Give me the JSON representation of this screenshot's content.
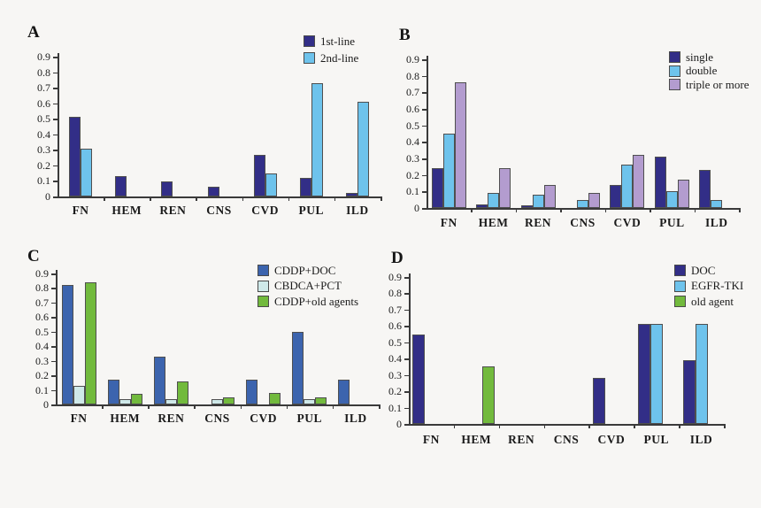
{
  "figure": {
    "background_color": "#f7f6f4",
    "text_color": "#1b1b1b",
    "axis_color": "#3a3a3a",
    "bar_border_color": "#4f4f4f",
    "categories": [
      "FN",
      "HEM",
      "REN",
      "CNS",
      "CVD",
      "PUL",
      "ILD"
    ],
    "y_tick_labels": [
      "0.9",
      "0.8",
      "0.7",
      "0.6",
      "0.5",
      "0.4",
      "0.3",
      "0.2",
      "0.1",
      "0"
    ]
  },
  "chart_data": [
    {
      "id": "A",
      "panel_label": "A",
      "type": "bar",
      "categories": [
        "FN",
        "HEM",
        "REN",
        "CNS",
        "CVD",
        "PUL",
        "ILD"
      ],
      "ylim": [
        0,
        0.9
      ],
      "y_ticks": [
        0.9,
        0.8,
        0.7,
        0.6,
        0.5,
        0.4,
        0.3,
        0.2,
        0.1,
        0
      ],
      "legend_position": "top-right",
      "series": [
        {
          "name": "1st-line",
          "color": "#322e87",
          "values": [
            0.51,
            0.13,
            0.095,
            0.06,
            0.27,
            0.12,
            0.02
          ]
        },
        {
          "name": "2nd-line",
          "color": "#6ec3ec",
          "values": [
            0.31,
            0,
            0,
            0,
            0.15,
            0.73,
            0.61
          ]
        }
      ]
    },
    {
      "id": "B",
      "panel_label": "B",
      "type": "bar",
      "categories": [
        "FN",
        "HEM",
        "REN",
        "CNS",
        "CVD",
        "PUL",
        "ILD"
      ],
      "ylim": [
        0,
        0.9
      ],
      "y_ticks": [
        0.9,
        0.8,
        0.7,
        0.6,
        0.5,
        0.4,
        0.3,
        0.2,
        0.1,
        0
      ],
      "legend_position": "top-right",
      "series": [
        {
          "name": "single",
          "color": "#322e87",
          "values": [
            0.24,
            0.02,
            0.015,
            0,
            0.14,
            0.31,
            0.23
          ]
        },
        {
          "name": "double",
          "color": "#6ec3ec",
          "values": [
            0.45,
            0.09,
            0.08,
            0.05,
            0.26,
            0.1,
            0.05
          ]
        },
        {
          "name": "triple or more",
          "color": "#b39ccf",
          "values": [
            0.76,
            0.24,
            0.14,
            0.09,
            0.32,
            0.17,
            0
          ]
        }
      ]
    },
    {
      "id": "C",
      "panel_label": "C",
      "type": "bar",
      "categories": [
        "FN",
        "HEM",
        "REN",
        "CNS",
        "CVD",
        "PUL",
        "ILD"
      ],
      "ylim": [
        0,
        0.9
      ],
      "y_ticks": [
        0.9,
        0.8,
        0.7,
        0.6,
        0.5,
        0.4,
        0.3,
        0.2,
        0.1,
        0
      ],
      "legend_position": "top-right",
      "series": [
        {
          "name": "CDDP+DOC",
          "color": "#3c64ae",
          "values": [
            0.82,
            0.17,
            0.33,
            0,
            0.17,
            0.5,
            0.17
          ]
        },
        {
          "name": "CBDCA+PCT",
          "color": "#cfe9e9",
          "values": [
            0.13,
            0.035,
            0.035,
            0.035,
            0,
            0.035,
            0
          ]
        },
        {
          "name": "CDDP+old agents",
          "color": "#72ba3d",
          "values": [
            0.84,
            0.07,
            0.16,
            0.05,
            0.08,
            0.05,
            0
          ]
        }
      ]
    },
    {
      "id": "D",
      "panel_label": "D",
      "type": "bar",
      "categories": [
        "FN",
        "HEM",
        "REN",
        "CNS",
        "CVD",
        "PUL",
        "ILD"
      ],
      "ylim": [
        0,
        0.9
      ],
      "y_ticks": [
        0.9,
        0.8,
        0.7,
        0.6,
        0.5,
        0.4,
        0.3,
        0.2,
        0.1,
        0
      ],
      "legend_position": "top-right",
      "series": [
        {
          "name": "DOC",
          "color": "#322e87",
          "values": [
            0.55,
            0,
            0,
            0,
            0.28,
            0.61,
            0.39
          ]
        },
        {
          "name": "EGFR-TKI",
          "color": "#6ec3ec",
          "values": [
            0,
            0,
            0,
            0,
            0,
            0.61,
            0.61
          ]
        },
        {
          "name": "old agent",
          "color": "#72ba3d",
          "values": [
            0,
            0.35,
            0,
            0,
            0,
            0,
            0
          ]
        }
      ]
    }
  ]
}
